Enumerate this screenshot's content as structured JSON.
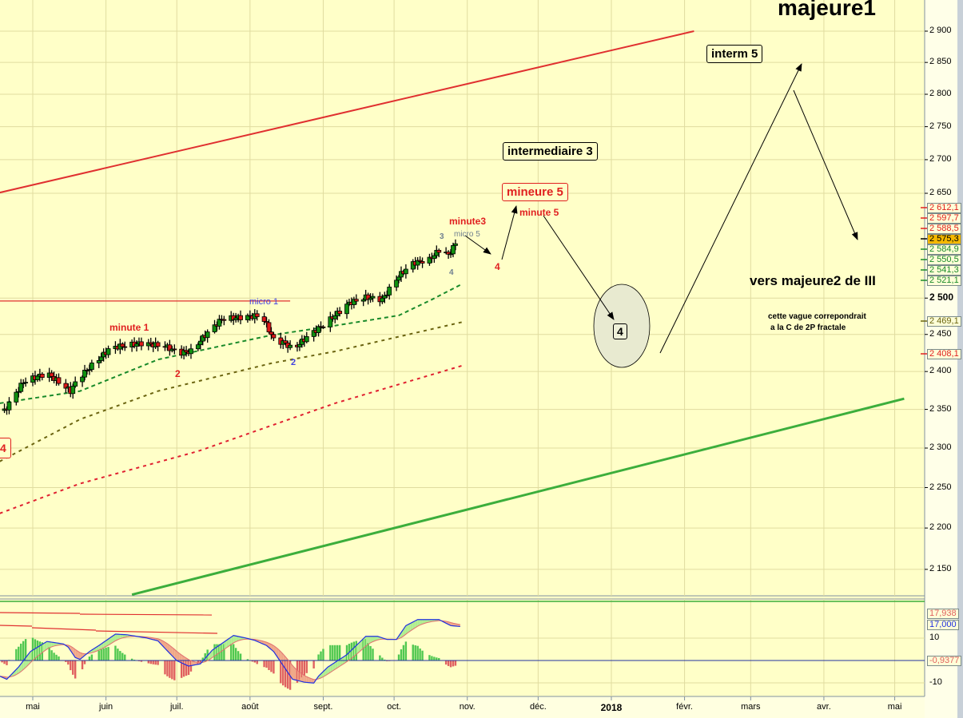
{
  "chart_data": [
    {
      "type": "candlestick",
      "scale": "log",
      "ylim": [
        2120,
        2950
      ],
      "xlim": [
        "2017-04-17",
        "2018-05-15"
      ],
      "grid": true,
      "yticks": [
        "2 900",
        "2 850",
        "2 800",
        "2 750",
        "2 700",
        "2 650",
        "2 500",
        "2 450",
        "2 400",
        "2 350",
        "2 300",
        "2 250",
        "2 200",
        "2 150"
      ],
      "ytick_values": [
        2900,
        2850,
        2800,
        2750,
        2700,
        2650,
        2500,
        2450,
        2400,
        2350,
        2300,
        2250,
        2200,
        2150
      ],
      "xticks": [
        {
          "label": "mai",
          "date": "2017-05-01"
        },
        {
          "label": "juin",
          "date": "2017-06-01"
        },
        {
          "label": "juil.",
          "date": "2017-07-01"
        },
        {
          "label": "août",
          "date": "2017-08-01"
        },
        {
          "label": "sept.",
          "date": "2017-09-01"
        },
        {
          "label": "oct.",
          "date": "2017-10-01"
        },
        {
          "label": "nov.",
          "date": "2017-11-01"
        },
        {
          "label": "déc.",
          "date": "2017-12-01"
        },
        {
          "label": "2018",
          "date": "2018-01-01"
        },
        {
          "label": "févr.",
          "date": "2018-02-01"
        },
        {
          "label": "mars",
          "date": "2018-03-01"
        },
        {
          "label": "avr.",
          "date": "2018-04-01"
        },
        {
          "label": "mai",
          "date": "2018-05-01"
        }
      ],
      "price_closes": [
        [
          "2017-04-19",
          2348
        ],
        [
          "2017-04-27",
          2386
        ],
        [
          "2017-05-07",
          2398
        ],
        [
          "2017-05-17",
          2374
        ],
        [
          "2017-05-20",
          2390
        ],
        [
          "2017-05-27",
          2411
        ],
        [
          "2017-06-03",
          2432
        ],
        [
          "2017-06-16",
          2438
        ],
        [
          "2017-06-26",
          2434
        ],
        [
          "2017-07-02",
          2425
        ],
        [
          "2017-07-07",
          2427
        ],
        [
          "2017-07-13",
          2449
        ],
        [
          "2017-07-20",
          2471
        ],
        [
          "2017-08-06",
          2476
        ],
        [
          "2017-08-11",
          2443
        ],
        [
          "2017-08-16",
          2438
        ],
        [
          "2017-08-19",
          2429
        ],
        [
          "2017-08-26",
          2449
        ],
        [
          "2017-09-02",
          2465
        ],
        [
          "2017-09-12",
          2493
        ],
        [
          "2017-09-19",
          2501
        ],
        [
          "2017-09-26",
          2498
        ],
        [
          "2017-10-03",
          2531
        ],
        [
          "2017-10-09",
          2549
        ],
        [
          "2017-10-16",
          2554
        ],
        [
          "2017-10-21",
          2571
        ],
        [
          "2017-10-24",
          2560
        ],
        [
          "2017-10-27",
          2577
        ]
      ],
      "moving_averages": [
        {
          "color": "#1a8a2a",
          "points": [
            [
              "2017-04-17",
              2358
            ],
            [
              "2017-05-21",
              2374
            ],
            [
              "2017-06-23",
              2416
            ],
            [
              "2017-08-10",
              2449
            ],
            [
              "2017-09-06",
              2462
            ],
            [
              "2017-10-03",
              2476
            ],
            [
              "2017-10-17",
              2498
            ],
            [
              "2017-10-30",
              2520
            ]
          ]
        },
        {
          "color": "#6b6410",
          "points": [
            [
              "2017-04-17",
              2283
            ],
            [
              "2017-05-21",
              2337
            ],
            [
              "2017-06-23",
              2374
            ],
            [
              "2017-08-10",
              2411
            ],
            [
              "2017-09-06",
              2427
            ],
            [
              "2017-10-30",
              2467
            ]
          ]
        },
        {
          "color": "#e02030",
          "points": [
            [
              "2017-04-17",
              2218
            ],
            [
              "2017-05-21",
              2255
            ],
            [
              "2017-07-10",
              2296
            ],
            [
              "2017-09-06",
              2358
            ],
            [
              "2017-10-30",
              2408
            ]
          ]
        }
      ],
      "channel_lines": [
        {
          "color": "#e03030",
          "from": [
            "2017-04-17",
            2651
          ],
          "to": [
            "2018-02-05",
            2900
          ]
        },
        {
          "color": "#3cae3c",
          "from": [
            "2017-06-12",
            2120
          ],
          "to": [
            "2018-05-05",
            2364
          ]
        },
        {
          "color": "#e03030",
          "from": [
            "2017-04-17",
            2496
          ],
          "to": [
            "2017-08-18",
            2496
          ]
        }
      ],
      "price_labels": [
        {
          "text": "2 612,1",
          "color": "#e02020"
        },
        {
          "text": "2 597,7",
          "color": "#e02020"
        },
        {
          "text": "2 588,5",
          "color": "#e02020"
        },
        {
          "text": "2 575,3",
          "color": "#000000",
          "bg": "#f5b800"
        },
        {
          "text": "2 584,9",
          "color": "#1a8a2a"
        },
        {
          "text": "2 550,5",
          "color": "#1a8a2a"
        },
        {
          "text": "2 541,3",
          "color": "#1a8a2a"
        },
        {
          "text": "2 521,1",
          "color": "#1a8a2a"
        },
        {
          "text": "2 469,1",
          "color": "#6b6410"
        },
        {
          "text": "2 408,1",
          "color": "#e02020"
        }
      ],
      "annotations": {
        "title": "majeure1",
        "interm5": "interm 5",
        "intermediaire3": "intermediaire 3",
        "mineure5": "mineure 5",
        "minute5": "minute 5",
        "minute3": "minute3",
        "micro5": "micro 5",
        "wave3": "3",
        "wave4_gray": "4",
        "wave4_red": "4",
        "vers": "vers majeure2 de III",
        "note1": "cette vague correpondrait",
        "note2": "a la C de 2P fractale",
        "circle4": "4",
        "minute1": "minute 1",
        "wave2_red": "2",
        "micro1": "micro 1",
        "wave2_blue": "2",
        "left4": "4"
      }
    },
    {
      "type": "line",
      "title": "",
      "yticks": [
        "10",
        "-10"
      ],
      "ytick_values": [
        10,
        -10
      ],
      "line_color": "#2030e0",
      "signal_color": "#e07070",
      "values": [
        [
          "2017-04-17",
          -7.0
        ],
        [
          "2017-04-20",
          -8.4
        ],
        [
          "2017-04-25",
          -2.9
        ],
        [
          "2017-04-30",
          4.0
        ],
        [
          "2017-05-07",
          8.5
        ],
        [
          "2017-05-14",
          7.4
        ],
        [
          "2017-05-16",
          6.0
        ],
        [
          "2017-05-19",
          1.3
        ],
        [
          "2017-05-21",
          0.5
        ],
        [
          "2017-05-25",
          4.0
        ],
        [
          "2017-05-29",
          6.7
        ],
        [
          "2017-06-05",
          11.8
        ],
        [
          "2017-06-10",
          11.5
        ],
        [
          "2017-06-18",
          10.1
        ],
        [
          "2017-06-23",
          8.8
        ],
        [
          "2017-06-26",
          5.4
        ],
        [
          "2017-07-01",
          -0.1
        ],
        [
          "2017-07-06",
          -2.5
        ],
        [
          "2017-07-11",
          -1.5
        ],
        [
          "2017-07-16",
          4.6
        ],
        [
          "2017-07-25",
          11.2
        ],
        [
          "2017-07-30",
          10.1
        ],
        [
          "2017-08-03",
          9.0
        ],
        [
          "2017-08-08",
          6.7
        ],
        [
          "2017-08-11",
          4.0
        ],
        [
          "2017-08-19",
          -8.4
        ],
        [
          "2017-08-24",
          -9.7
        ],
        [
          "2017-08-28",
          -10.1
        ],
        [
          "2017-08-30",
          -7.0
        ],
        [
          "2017-09-03",
          -2.9
        ],
        [
          "2017-09-11",
          2.6
        ],
        [
          "2017-09-19",
          10.8
        ],
        [
          "2017-09-24",
          10.8
        ],
        [
          "2017-09-28",
          9.4
        ],
        [
          "2017-10-02",
          9.4
        ],
        [
          "2017-10-06",
          15.6
        ],
        [
          "2017-10-11",
          18.3
        ],
        [
          "2017-10-16",
          18.3
        ],
        [
          "2017-10-20",
          18.3
        ],
        [
          "2017-10-25",
          15.6
        ],
        [
          "2017-10-29",
          15.2
        ]
      ],
      "labels": [
        {
          "text": "17,938",
          "color": "#e06060"
        },
        {
          "text": "17,000",
          "color": "#2030e0"
        },
        {
          "text": "-0,9377",
          "color": "#e06060"
        }
      ]
    }
  ]
}
